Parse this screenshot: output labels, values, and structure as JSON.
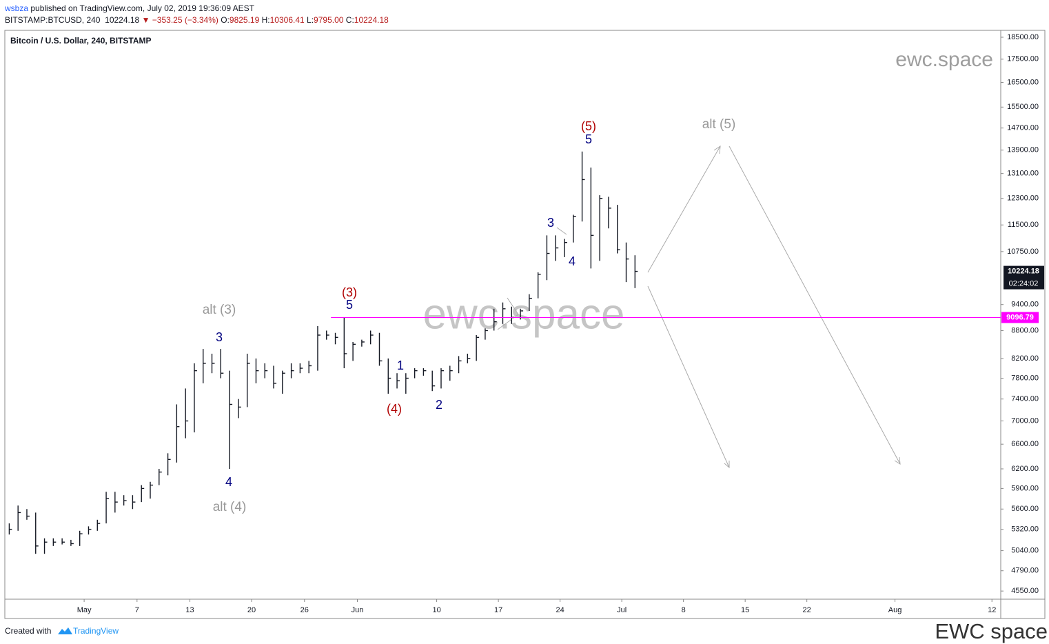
{
  "header": {
    "user": "wsbza",
    "published": " published on TradingView.com, July 02, 2019 19:36:09 AEST",
    "symbol": "BITSTAMP:BTCUSD, 240",
    "last": "10224.18",
    "change": "−353.25 (−3.34%)",
    "ohlc": [
      {
        "key": "O:",
        "value": "9825.19"
      },
      {
        "key": "H:",
        "value": "10306.41"
      },
      {
        "key": "L:",
        "value": "9795.00"
      },
      {
        "key": "C:",
        "value": "10224.18"
      }
    ]
  },
  "chart_data": {
    "type": "ohlc",
    "title": "Bitcoin / U.S. Dollar, 240, BITSTAMP",
    "log_scale": true,
    "color": "#131722",
    "x": [
      "04-22",
      "04-23",
      "04-24",
      "04-25",
      "04-26",
      "04-27",
      "04-28",
      "04-29",
      "04-30",
      "05-01",
      "05-02",
      "05-03",
      "05-04",
      "05-05",
      "05-06",
      "05-07",
      "05-08",
      "05-09",
      "05-10",
      "05-11",
      "05-12",
      "05-13",
      "05-14",
      "05-15",
      "05-16",
      "05-17",
      "05-18",
      "05-19",
      "05-20",
      "05-21",
      "05-22",
      "05-23",
      "05-24",
      "05-25",
      "05-26",
      "05-27",
      "05-28",
      "05-29",
      "05-30",
      "05-31",
      "06-01",
      "06-02",
      "06-03",
      "06-04",
      "06-05",
      "06-06",
      "06-07",
      "06-08",
      "06-09",
      "06-10",
      "06-11",
      "06-12",
      "06-13",
      "06-14",
      "06-15",
      "06-16",
      "06-17",
      "06-18",
      "06-19",
      "06-20",
      "06-21",
      "06-22",
      "06-23",
      "06-24",
      "06-25",
      "06-26",
      "06-27",
      "06-28",
      "06-29",
      "06-30",
      "07-01",
      "07-02"
    ],
    "high": [
      5400,
      5650,
      5600,
      5550,
      5200,
      5200,
      5200,
      5180,
      5300,
      5360,
      5450,
      5850,
      5850,
      5800,
      5800,
      5950,
      6000,
      6200,
      6450,
      7300,
      7600,
      8100,
      8400,
      8300,
      8400,
      7950,
      7400,
      8300,
      8200,
      8100,
      8050,
      7950,
      8100,
      8100,
      8150,
      8900,
      8800,
      8750,
      9100,
      8550,
      8600,
      8800,
      8750,
      8200,
      7900,
      7900,
      8000,
      8000,
      7950,
      8000,
      8050,
      8250,
      8300,
      8700,
      8850,
      9300,
      9450,
      9350,
      9300,
      9650,
      10200,
      11200,
      11200,
      11100,
      11800,
      13850,
      13300,
      12400,
      12350,
      12100,
      11000,
      10650
    ],
    "low": [
      5250,
      5300,
      5450,
      5000,
      5000,
      5100,
      5120,
      5100,
      5100,
      5250,
      5300,
      5400,
      5550,
      5650,
      5600,
      5700,
      5750,
      5950,
      6100,
      6300,
      6700,
      6800,
      7700,
      7900,
      7800,
      6200,
      7050,
      7250,
      7700,
      7800,
      7600,
      7500,
      7800,
      7900,
      7900,
      7950,
      8600,
      8500,
      8000,
      8150,
      8450,
      8500,
      8050,
      7500,
      7600,
      7500,
      7800,
      7850,
      7550,
      7600,
      7750,
      7900,
      8100,
      8150,
      8600,
      8800,
      8950,
      8950,
      9050,
      9250,
      9550,
      10000,
      10500,
      10600,
      11000,
      11600,
      10300,
      10500,
      11400,
      10700,
      9950,
      9800
    ],
    "close": [
      5320,
      5550,
      5500,
      5100,
      5150,
      5150,
      5150,
      5130,
      5260,
      5320,
      5400,
      5750,
      5700,
      5720,
      5700,
      5900,
      5950,
      6150,
      6350,
      6900,
      7000,
      7950,
      8100,
      8100,
      7900,
      7300,
      7250,
      8100,
      7950,
      7950,
      7700,
      7900,
      7950,
      8000,
      8050,
      8700,
      8700,
      8650,
      8300,
      8500,
      8550,
      8700,
      8150,
      7800,
      7750,
      7800,
      7950,
      7950,
      7650,
      7950,
      7950,
      8150,
      8200,
      8650,
      8800,
      9000,
      9300,
      9100,
      9250,
      9550,
      10150,
      10700,
      10850,
      11000,
      11750,
      12900,
      11200,
      12300,
      12000,
      10800,
      10550,
      10224.18
    ],
    "xlim": [
      "04-22",
      "08-13"
    ],
    "xticks": [
      {
        "value": "05-01",
        "label": "May"
      },
      {
        "value": "05-07",
        "label": "7"
      },
      {
        "value": "05-13",
        "label": "13"
      },
      {
        "value": "05-20",
        "label": "20"
      },
      {
        "value": "05-26",
        "label": "26"
      },
      {
        "value": "06-01",
        "label": "Jun"
      },
      {
        "value": "06-10",
        "label": "10"
      },
      {
        "value": "06-17",
        "label": "17"
      },
      {
        "value": "06-24",
        "label": "24"
      },
      {
        "value": "07-01",
        "label": "Jul"
      },
      {
        "value": "07-08",
        "label": "8"
      },
      {
        "value": "07-15",
        "label": "15"
      },
      {
        "value": "07-22",
        "label": "22"
      },
      {
        "value": "08-01",
        "label": "Aug"
      },
      {
        "value": "08-12",
        "label": "12"
      }
    ],
    "ylim": [
      4457,
      18826
    ],
    "yticks": [
      {
        "value": 18500,
        "label": "18500.00"
      },
      {
        "value": 17500,
        "label": "17500.00"
      },
      {
        "value": 16500,
        "label": "16500.00"
      },
      {
        "value": 15500,
        "label": "15500.00"
      },
      {
        "value": 14700,
        "label": "14700.00"
      },
      {
        "value": 13900,
        "label": "13900.00"
      },
      {
        "value": 13100,
        "label": "13100.00"
      },
      {
        "value": 12300,
        "label": "12300.00"
      },
      {
        "value": 11500,
        "label": "11500.00"
      },
      {
        "value": 10750,
        "label": "10750.00"
      },
      {
        "value": 9400,
        "label": "9400.00"
      },
      {
        "value": 8800,
        "label": "8800.00"
      },
      {
        "value": 8200,
        "label": "8200.00"
      },
      {
        "value": 7800,
        "label": "7800.00"
      },
      {
        "value": 7400,
        "label": "7400.00"
      },
      {
        "value": 7000,
        "label": "7000.00"
      },
      {
        "value": 6600,
        "label": "6600.00"
      },
      {
        "value": 6200,
        "label": "6200.00"
      },
      {
        "value": 5900,
        "label": "5900.00"
      },
      {
        "value": 5600,
        "label": "5600.00"
      },
      {
        "value": 5320,
        "label": "5320.00"
      },
      {
        "value": 5040,
        "label": "5040.00"
      },
      {
        "value": 4790,
        "label": "4790.00"
      },
      {
        "value": 4550,
        "label": "4550.00"
      }
    ],
    "last_price": {
      "value": 10224.18,
      "label": "10224.18",
      "countdown": "02:24:02"
    },
    "level": {
      "value": 9096.79,
      "label": "9096.79",
      "color": "#ff00ff"
    },
    "annotations": [
      {
        "text": "(5)",
        "color": "#b00000"
      },
      {
        "text": "5",
        "color": "#000080"
      },
      {
        "text": "alt (5)",
        "color": "#999999"
      },
      {
        "text": "3",
        "color": "#000080"
      },
      {
        "text": "4",
        "color": "#000080"
      },
      {
        "text": "(3)",
        "color": "#b00000"
      },
      {
        "text": "5",
        "color": "#000080"
      },
      {
        "text": "alt (3)",
        "color": "#999999"
      },
      {
        "text": "3",
        "color": "#000080"
      },
      {
        "text": "1",
        "color": "#000080"
      },
      {
        "text": "(4)",
        "color": "#b00000"
      },
      {
        "text": "2",
        "color": "#000080"
      },
      {
        "text": "4",
        "color": "#000080"
      },
      {
        "text": "alt (4)",
        "color": "#999999"
      }
    ],
    "watermark": "ewc.space",
    "brand": "ewc.space"
  },
  "footer": {
    "created": "Created with",
    "tradingview": "TradingView",
    "signature": "EWC space"
  }
}
